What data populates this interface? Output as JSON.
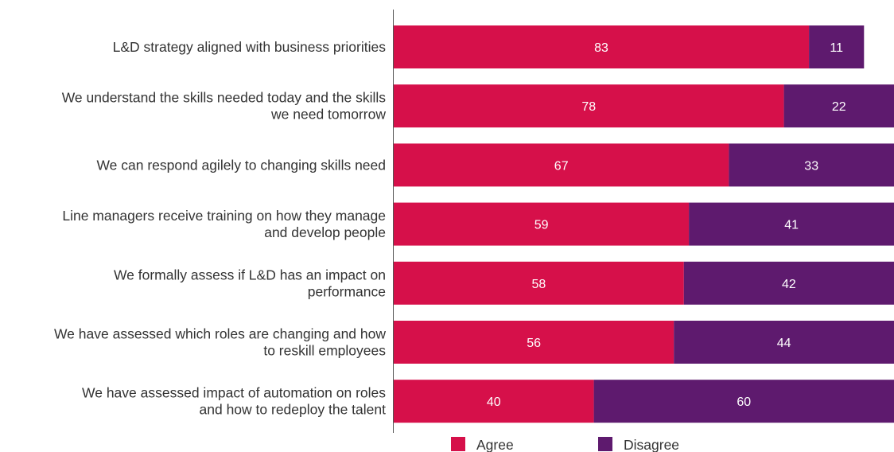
{
  "chart_data": {
    "type": "bar",
    "orientation": "horizontal",
    "stacked": true,
    "categories": [
      [
        "L&D strategy aligned with business priorities"
      ],
      [
        "We understand the skills needed today and the skills",
        "we need tomorrow"
      ],
      [
        "We can respond agilely to changing skills need"
      ],
      [
        "Line managers receive training on how they manage",
        "and develop people"
      ],
      [
        "We formally assess if L&D has an impact on",
        "performance"
      ],
      [
        "We have assessed which roles are changing and how",
        "to reskill employees"
      ],
      [
        "We have assessed impact of automation on roles",
        "and how to redeploy the talent"
      ]
    ],
    "series": [
      {
        "name": "Agree",
        "color": "#d6104a",
        "values": [
          83,
          78,
          67,
          59,
          58,
          56,
          40
        ]
      },
      {
        "name": "Disagree",
        "color": "#5e1a6e",
        "values": [
          11,
          22,
          33,
          41,
          42,
          44,
          60
        ]
      }
    ],
    "xlim": [
      0,
      100
    ],
    "grid": false,
    "legend_position": "bottom"
  }
}
